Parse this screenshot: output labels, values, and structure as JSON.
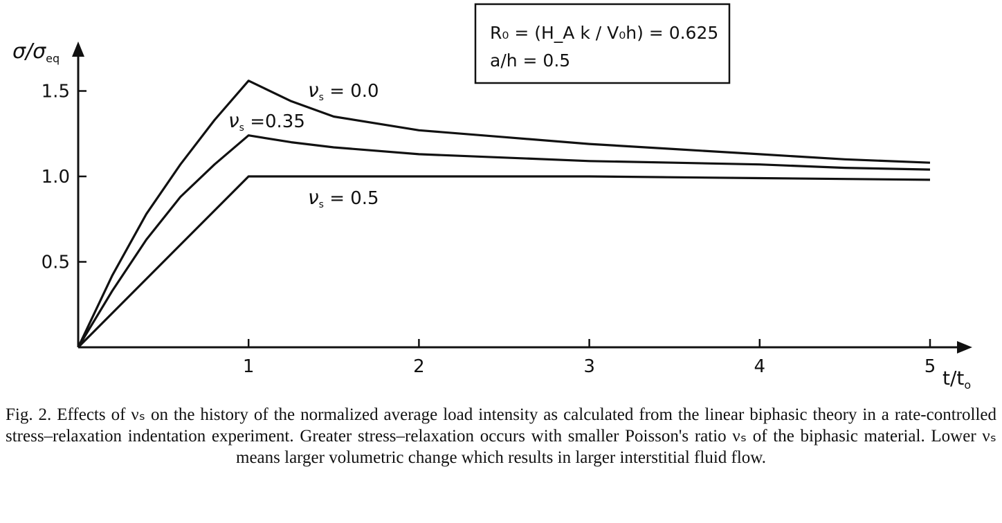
{
  "chart_data": {
    "type": "line",
    "ylabel_main": "σ/σ",
    "ylabel_sub": "eq",
    "xlabel_main": "t/t",
    "xlabel_sub": "o",
    "xticks": [
      {
        "value": 1,
        "label": "1"
      },
      {
        "value": 2,
        "label": "2"
      },
      {
        "value": 3,
        "label": "3"
      },
      {
        "value": 4,
        "label": "4"
      },
      {
        "value": 5,
        "label": "5"
      }
    ],
    "yticks": [
      {
        "value": 0.5,
        "label": "0.5"
      },
      {
        "value": 1.0,
        "label": "1.0"
      },
      {
        "value": 1.5,
        "label": "1.5"
      }
    ],
    "xlim": [
      0,
      5.2
    ],
    "ylim": [
      0,
      1.75
    ],
    "grid": false,
    "series": [
      {
        "label_main": "ν",
        "label_sub": "s",
        "label_value": " = 0.0",
        "x": [
          0,
          0.2,
          0.4,
          0.6,
          0.8,
          1.0,
          1.25,
          1.5,
          2.0,
          2.5,
          3.0,
          3.5,
          4.0,
          4.5,
          5.0
        ],
        "y": [
          0,
          0.42,
          0.78,
          1.07,
          1.33,
          1.56,
          1.44,
          1.35,
          1.27,
          1.23,
          1.19,
          1.16,
          1.13,
          1.1,
          1.08
        ]
      },
      {
        "label_main": "ν",
        "label_sub": "s",
        "label_value": " =0.35",
        "x": [
          0,
          0.2,
          0.4,
          0.6,
          0.8,
          1.0,
          1.25,
          1.5,
          2.0,
          2.5,
          3.0,
          3.5,
          4.0,
          4.5,
          5.0
        ],
        "y": [
          0,
          0.33,
          0.63,
          0.88,
          1.07,
          1.24,
          1.2,
          1.17,
          1.13,
          1.11,
          1.09,
          1.08,
          1.07,
          1.05,
          1.04
        ]
      },
      {
        "label_main": "ν",
        "label_sub": "s",
        "label_value": " = 0.5",
        "x": [
          0,
          1.0,
          2.0,
          3.0,
          4.0,
          5.0
        ],
        "y": [
          0,
          1.0,
          1.0,
          1.0,
          0.99,
          0.98
        ]
      }
    ],
    "annotation_lines": [
      "R₀ = (H_A k / V₀h) = 0.625",
      "a/h = 0.5"
    ]
  },
  "caption": "Fig. 2. Effects of νₛ on the history of the normalized average load intensity as calculated from the linear biphasic theory in a rate-controlled stress–relaxation indentation experiment. Greater stress–relaxation occurs with smaller Poisson's ratio νₛ of the biphasic material. Lower νₛ means larger volumetric change which results in larger interstitial fluid flow."
}
